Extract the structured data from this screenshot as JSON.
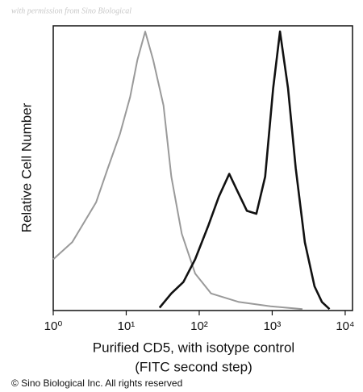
{
  "chart_data": {
    "type": "line",
    "watermark": "with permission from Sino Biological",
    "ylabel": "Relative Cell Number",
    "xlabel": [
      "Purified CD5, with isotype control",
      "(FITC second step)"
    ],
    "footer": "© Sino Biological Inc. All rights reserved",
    "xscale": "log",
    "xlim": [
      1,
      12600
    ],
    "ylim": [
      0,
      100
    ],
    "xticks": [
      {
        "value": 1,
        "label": "10⁰"
      },
      {
        "value": 10,
        "label": "10¹"
      },
      {
        "value": 100,
        "label": "10²"
      },
      {
        "value": 1000,
        "label": "10³"
      },
      {
        "value": 10000,
        "label": "10⁴"
      }
    ],
    "series": [
      {
        "color": "#9a9a9a",
        "x": [
          1,
          1.82,
          2.65,
          3.86,
          5.6,
          8.2,
          11.3,
          14.2,
          18.2,
          23.4,
          32.4,
          41.5,
          57.6,
          88,
          145,
          350,
          950,
          2600
        ],
        "values": [
          18,
          24,
          31,
          38,
          50,
          62,
          75,
          88,
          98,
          88,
          72,
          47,
          27,
          13,
          6,
          3,
          1.5,
          0.5
        ]
      },
      {
        "color": "#111111",
        "x": [
          28.6,
          41.5,
          60.6,
          88,
          134,
          186,
          258,
          333,
          450,
          607,
          800,
          1030,
          1280,
          1650,
          2100,
          2800,
          3800,
          4800,
          6100
        ],
        "values": [
          1,
          6,
          10,
          18,
          30,
          40,
          48,
          42,
          35,
          34,
          47,
          78,
          98,
          78,
          50,
          24,
          8.5,
          3,
          0.5
        ]
      }
    ]
  }
}
